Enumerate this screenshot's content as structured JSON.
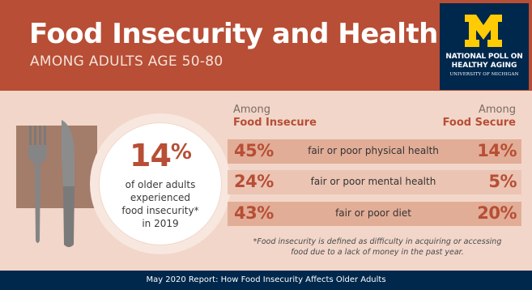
{
  "header": {
    "title": "Food Insecurity and Health",
    "subtitle": "AMONG ADULTS AGE 50-80",
    "background_color": "#b74e35"
  },
  "logo": {
    "icon": "block-m-logo-icon",
    "line1": "NATIONAL POLL ON",
    "line2": "HEALTHY AGING",
    "line3": "UNIVERSITY OF MICHIGAN",
    "background_color": "#00274c",
    "mark_color": "#ffcb05"
  },
  "plate": {
    "percent": "14%",
    "line1": "of older adults",
    "line2": "experienced",
    "line3": "food insecurity*",
    "line4": "in 2019",
    "icons": [
      "fork-icon",
      "knife-icon",
      "placemat-icon"
    ]
  },
  "columns": {
    "left_among": "Among",
    "left_group": "Food Insecure",
    "right_among": "Among",
    "right_group": "Food Secure"
  },
  "rows": [
    {
      "left": "45%",
      "label": "fair or poor physical health",
      "right": "14%"
    },
    {
      "left": "24%",
      "label": "fair or poor mental health",
      "right": "5%"
    },
    {
      "left": "43%",
      "label": "fair or poor diet",
      "right": "20%"
    }
  ],
  "footnote": {
    "line1": "*Food insecurity is defined as difficulty in acquiring or accessing",
    "line2": "food due to a lack of money in the past year."
  },
  "footer": {
    "text": "May 2020 Report: How Food Insecurity Affects Older Adults",
    "background_color": "#00274c"
  },
  "colors": {
    "accent": "#b74e35",
    "page_background": "#f2d6c9",
    "row_dark": "#e2ad97",
    "row_light": "#ebc4b3"
  }
}
